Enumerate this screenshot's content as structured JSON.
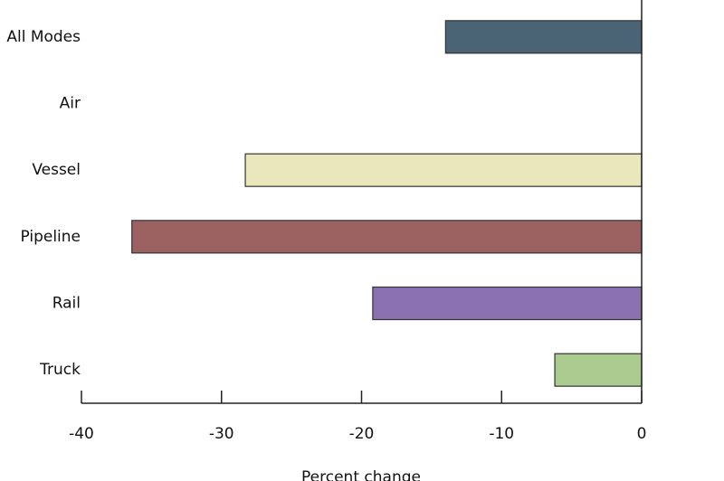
{
  "chart_data": {
    "type": "hbar",
    "categories": [
      "All Modes",
      "Air",
      "Vessel",
      "Pipeline",
      "Rail",
      "Truck"
    ],
    "values": [
      -14.0,
      0,
      -28.3,
      -36.4,
      -19.2,
      -6.2
    ],
    "colors": [
      "#4b6475",
      "#d9d9d9",
      "#e9e7bb",
      "#9b6161",
      "#8a72b0",
      "#abca8f"
    ],
    "xlim": [
      -40,
      0
    ],
    "xticks": [
      -40,
      -30,
      -20,
      -10,
      0
    ],
    "xlabel": "Percent change"
  }
}
